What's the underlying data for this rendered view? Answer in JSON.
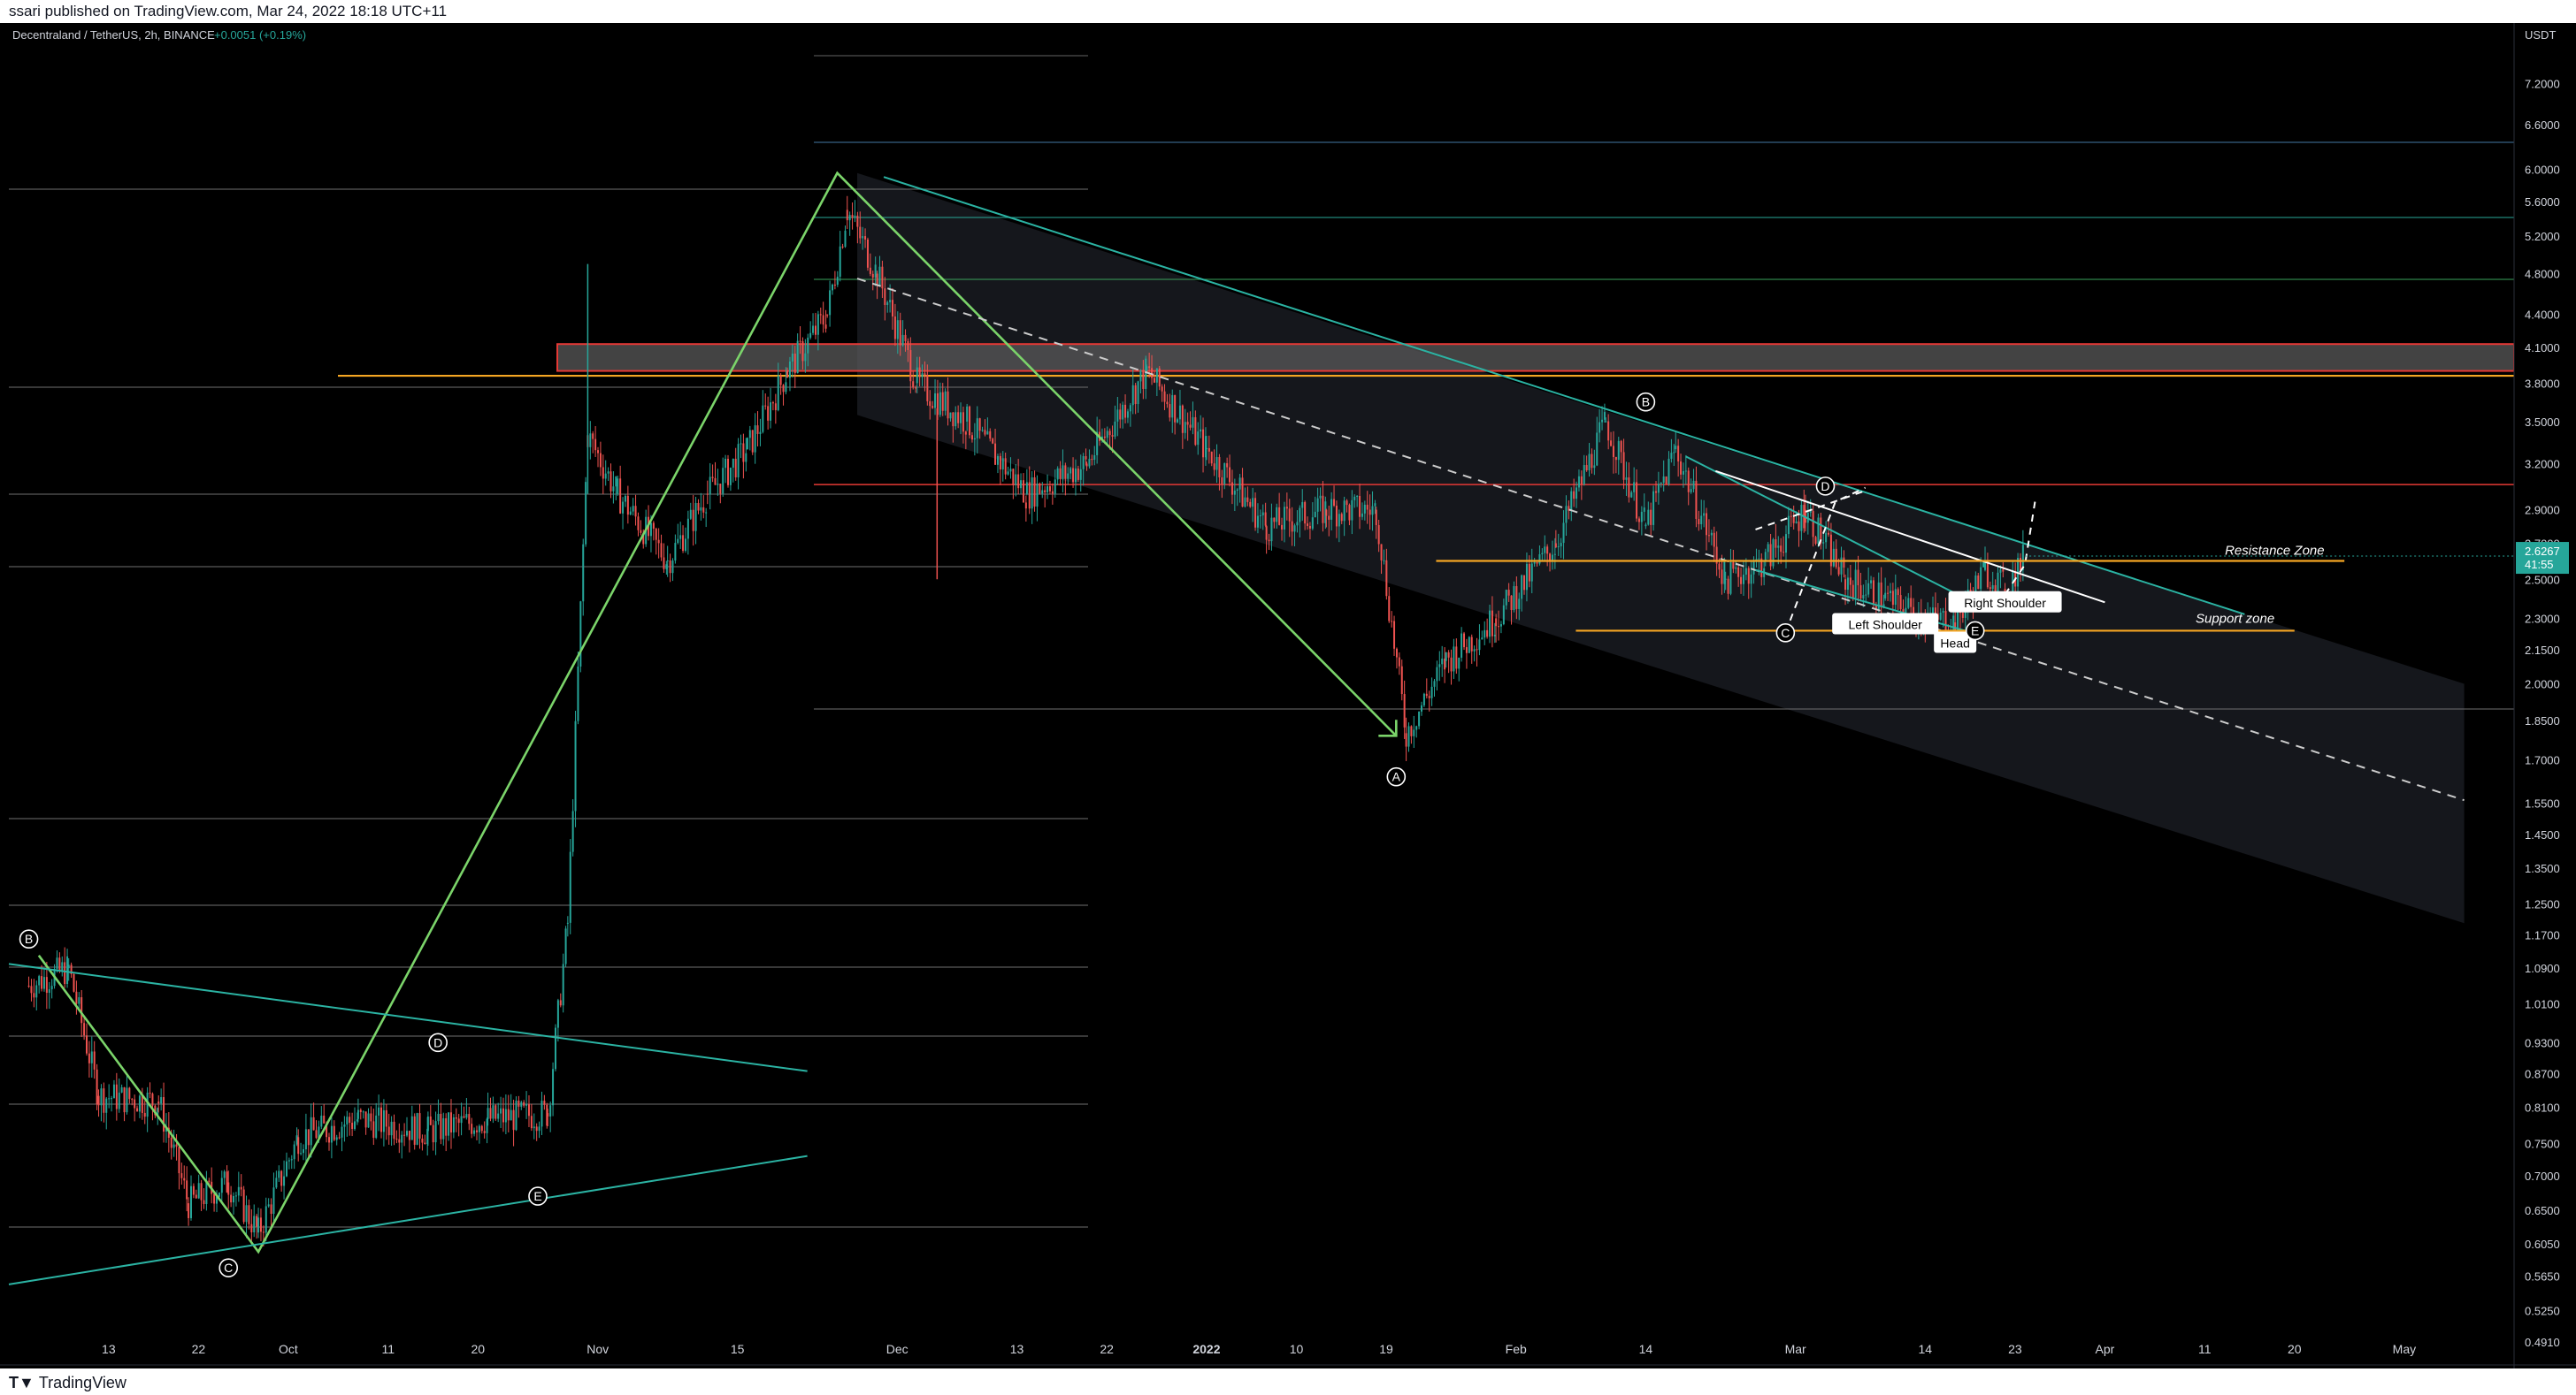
{
  "header": {
    "published": "ssari published on TradingView.com, Mar 24, 2022 18:18 UTC+11"
  },
  "legend": {
    "symbol": "Decentraland / TetherUS, 2h, BINANCE",
    "change": "+0.0051 (+0.19%)"
  },
  "footer": {
    "brand": "TradingView"
  },
  "price_badge": {
    "price": "2.6267",
    "countdown": "41:55"
  },
  "colors": {
    "background": "#000000",
    "up": "#26a69a",
    "down": "#ef5350",
    "wave": "#7bd46a",
    "channel": "#2bb3a3",
    "support": "#f5a623",
    "zone_border": "#e53935",
    "price_badge": "#26a69a"
  },
  "chart_data": {
    "type": "candlestick",
    "scale": "log",
    "ylim": [
      0.47,
      7.6
    ],
    "y_axis_unit": "USDT",
    "y_ticks": [
      "7.2000",
      "6.6000",
      "6.0000",
      "5.6000",
      "5.2000",
      "4.8000",
      "4.4000",
      "4.1000",
      "3.8000",
      "3.5000",
      "3.2000",
      "2.9000",
      "2.7000",
      "2.5000",
      "2.3000",
      "2.1500",
      "2.0000",
      "1.8500",
      "1.7000",
      "1.5500",
      "1.4500",
      "1.3500",
      "1.2500",
      "1.1700",
      "1.0900",
      "1.0100",
      "0.9300",
      "0.8700",
      "0.8100",
      "0.7500",
      "0.7000",
      "0.6500",
      "0.6050",
      "0.5650",
      "0.5250",
      "0.4910"
    ],
    "x_ticks": [
      "13",
      "22",
      "Oct",
      "11",
      "20",
      "Nov",
      "15",
      "Dec",
      "13",
      "22",
      "2022",
      "10",
      "19",
      "Feb",
      "14",
      "Mar",
      "14",
      "23",
      "Apr",
      "11",
      "20",
      "May"
    ],
    "price_path": [
      {
        "date": "2021-09-05",
        "price": 1.05
      },
      {
        "date": "2021-09-09",
        "price": 1.09
      },
      {
        "date": "2021-09-12",
        "price": 0.83
      },
      {
        "date": "2021-09-18",
        "price": 0.82
      },
      {
        "date": "2021-09-21",
        "price": 0.66
      },
      {
        "date": "2021-09-25",
        "price": 0.69
      },
      {
        "date": "2021-09-28",
        "price": 0.62
      },
      {
        "date": "2021-10-02",
        "price": 0.76
      },
      {
        "date": "2021-10-08",
        "price": 0.79
      },
      {
        "date": "2021-10-15",
        "price": 0.77
      },
      {
        "date": "2021-10-21",
        "price": 0.79
      },
      {
        "date": "2021-10-27",
        "price": 0.8
      },
      {
        "date": "2021-10-29",
        "price": 1.2
      },
      {
        "date": "2021-10-31",
        "price": 3.4
      },
      {
        "date": "2021-11-03",
        "price": 3.0
      },
      {
        "date": "2021-11-08",
        "price": 2.6
      },
      {
        "date": "2021-11-12",
        "price": 3.0
      },
      {
        "date": "2021-11-16",
        "price": 3.3
      },
      {
        "date": "2021-11-20",
        "price": 3.9
      },
      {
        "date": "2021-11-24",
        "price": 4.4
      },
      {
        "date": "2021-11-26",
        "price": 5.5
      },
      {
        "date": "2021-11-29",
        "price": 4.8
      },
      {
        "date": "2021-12-03",
        "price": 3.8
      },
      {
        "date": "2021-12-08",
        "price": 3.5
      },
      {
        "date": "2021-12-14",
        "price": 3.0
      },
      {
        "date": "2021-12-20",
        "price": 3.2
      },
      {
        "date": "2021-12-26",
        "price": 3.9
      },
      {
        "date": "2022-01-01",
        "price": 3.3
      },
      {
        "date": "2022-01-07",
        "price": 2.8
      },
      {
        "date": "2022-01-13",
        "price": 2.9
      },
      {
        "date": "2022-01-18",
        "price": 2.9
      },
      {
        "date": "2022-01-21",
        "price": 1.8
      },
      {
        "date": "2022-01-25",
        "price": 2.1
      },
      {
        "date": "2022-01-30",
        "price": 2.3
      },
      {
        "date": "2022-02-05",
        "price": 2.7
      },
      {
        "date": "2022-02-10",
        "price": 3.5
      },
      {
        "date": "2022-02-14",
        "price": 2.8
      },
      {
        "date": "2022-02-17",
        "price": 3.3
      },
      {
        "date": "2022-02-22",
        "price": 2.5
      },
      {
        "date": "2022-02-26",
        "price": 2.6
      },
      {
        "date": "2022-03-02",
        "price": 2.9
      },
      {
        "date": "2022-03-06",
        "price": 2.5
      },
      {
        "date": "2022-03-10",
        "price": 2.4
      },
      {
        "date": "2022-03-14",
        "price": 2.3
      },
      {
        "date": "2022-03-17",
        "price": 2.28
      },
      {
        "date": "2022-03-20",
        "price": 2.55
      },
      {
        "date": "2022-03-22",
        "price": 2.45
      },
      {
        "date": "2022-03-24",
        "price": 2.6267
      }
    ],
    "annotations": {
      "resistance_label": "Resistance Zone",
      "support_label": "Support zone",
      "left_shoulder": "Left Shoulder",
      "head": "Head",
      "right_shoulder": "Right Shoulder",
      "wave_labels": [
        {
          "label": "B",
          "date": "2021-09-05",
          "price": 1.16
        },
        {
          "label": "C",
          "date": "2021-09-25",
          "price": 0.575
        },
        {
          "label": "D",
          "date": "2021-10-16",
          "price": 0.93
        },
        {
          "label": "E",
          "date": "2021-10-26",
          "price": 0.67
        },
        {
          "label": "A",
          "date": "2022-01-20",
          "price": 1.64
        },
        {
          "label": "B",
          "date": "2022-02-14",
          "price": 3.65
        },
        {
          "label": "C",
          "date": "2022-02-28",
          "price": 2.23
        },
        {
          "label": "D",
          "date": "2022-03-04",
          "price": 3.05
        },
        {
          "label": "E",
          "date": "2022-03-19",
          "price": 2.24
        }
      ]
    },
    "levels": {
      "resistance": 2.6,
      "support": 2.24,
      "orange_top": 3.86,
      "zone_top": 4.13,
      "zone_bottom": 3.9,
      "red_line": 3.06
    }
  }
}
